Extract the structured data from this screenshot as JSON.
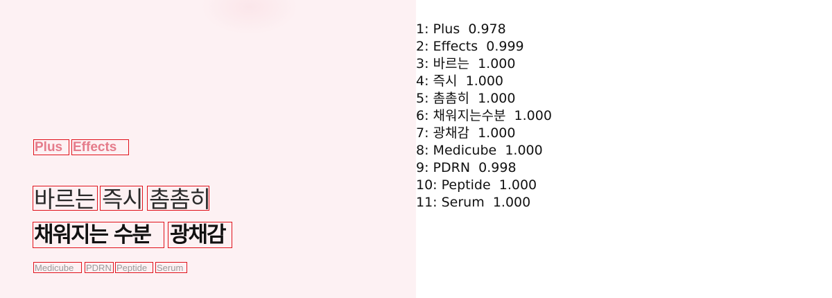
{
  "image": {
    "brand_line": {
      "words": [
        "Plus",
        "Effects"
      ]
    },
    "headline_thin": {
      "words": [
        "바르는",
        "즉시",
        "촘촘히"
      ]
    },
    "headline_bold": {
      "words": [
        "채워지는 수분",
        "광채감"
      ]
    },
    "tag_line": {
      "words": [
        "Medicube",
        "PDRN",
        "Peptide",
        "Serum"
      ]
    },
    "box_color": "#e0111a",
    "background_color": "#fdf1f3"
  },
  "results": {
    "items": [
      {
        "index": "1:",
        "text": "Plus",
        "score": "0.978"
      },
      {
        "index": "2:",
        "text": "Effects",
        "score": "0.999"
      },
      {
        "index": "3:",
        "text": "바르는",
        "score": "1.000"
      },
      {
        "index": "4:",
        "text": "즉시",
        "score": "1.000"
      },
      {
        "index": "5:",
        "text": "촘촘히",
        "score": "1.000"
      },
      {
        "index": "6:",
        "text": "채워지는수분",
        "score": "1.000"
      },
      {
        "index": "7:",
        "text": "광채감",
        "score": "1.000"
      },
      {
        "index": "8:",
        "text": "Medicube",
        "score": "1.000"
      },
      {
        "index": "9:",
        "text": "PDRN",
        "score": "0.998"
      },
      {
        "index": "10:",
        "text": "Peptide",
        "score": "1.000"
      },
      {
        "index": "11:",
        "text": "Serum",
        "score": "1.000"
      }
    ]
  }
}
